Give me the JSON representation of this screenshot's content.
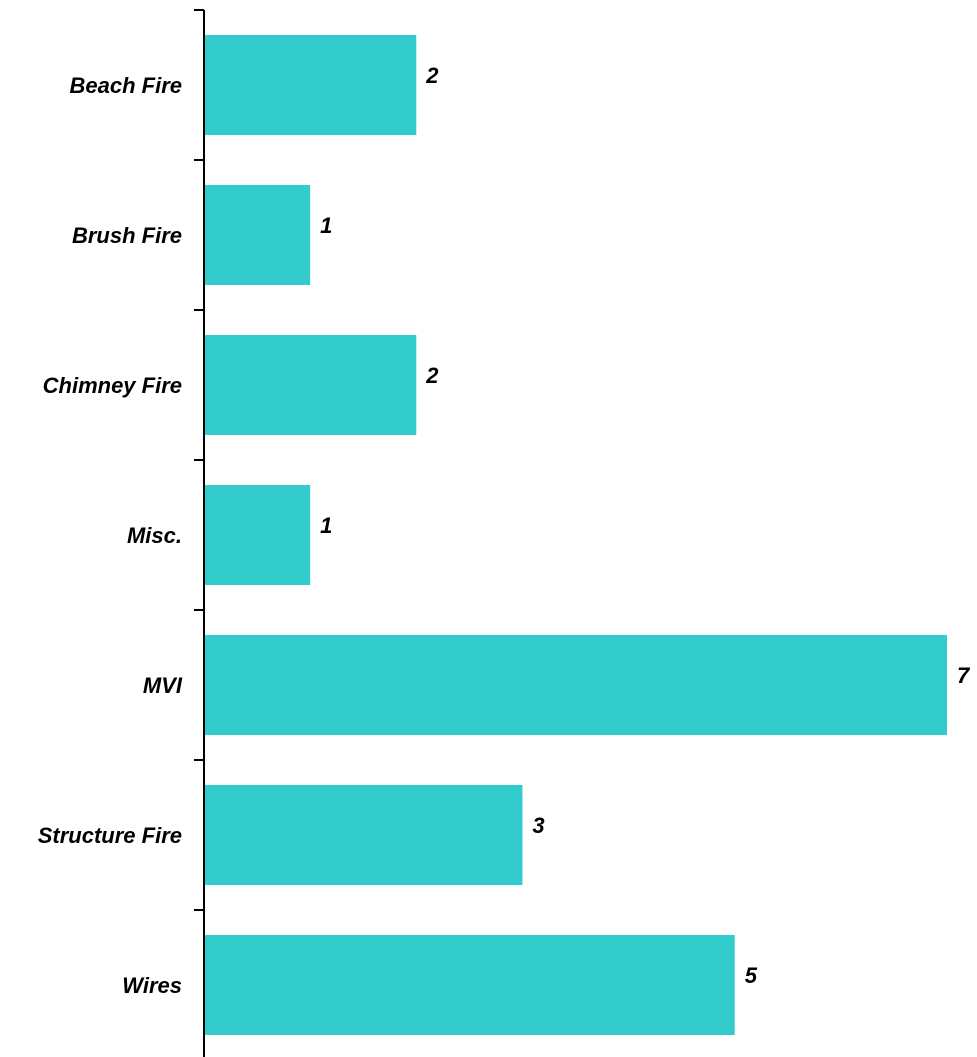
{
  "chart_data": {
    "type": "bar",
    "orientation": "horizontal",
    "categories": [
      "Beach Fire",
      "Brush Fire",
      "Chimney Fire",
      "Misc.",
      "MVI",
      "Structure Fire",
      "Wires"
    ],
    "values": [
      2,
      1,
      2,
      1,
      7,
      3,
      5
    ],
    "xlim": [
      0,
      7
    ],
    "grid": false,
    "legend": "none",
    "bar_color": "#33CCCC",
    "axis_color": "#000000"
  }
}
